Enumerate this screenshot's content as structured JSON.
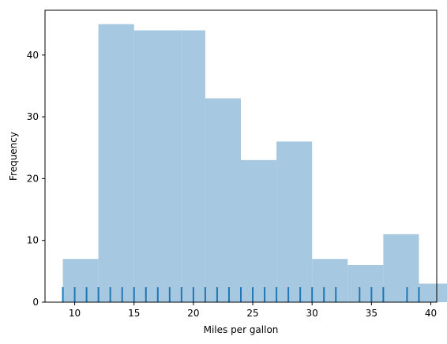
{
  "chart_data": {
    "type": "bar",
    "subtype": "histogram-with-rug",
    "title": "",
    "xlabel": "Miles per gallon",
    "ylabel": "Frequency",
    "xlim": [
      7.5,
      40.5
    ],
    "ylim": [
      0,
      47.25
    ],
    "xticks": [
      10,
      15,
      20,
      25,
      30,
      35,
      40
    ],
    "yticks": [
      0,
      10,
      20,
      30,
      40
    ],
    "bins": [
      {
        "x0": 9.0,
        "x1": 12.0,
        "count": 7
      },
      {
        "x0": 12.0,
        "x1": 15.0,
        "count": 45
      },
      {
        "x0": 15.0,
        "x1": 19.0,
        "count": 44
      },
      {
        "x0": 19.0,
        "x1": 21.0,
        "count": 44
      },
      {
        "x0": 21.0,
        "x1": 24.0,
        "count": 33
      },
      {
        "x0": 24.0,
        "x1": 27.0,
        "count": 23
      },
      {
        "x0": 27.0,
        "x1": 30.0,
        "count": 26
      },
      {
        "x0": 30.0,
        "x1": 33.0,
        "count": 7
      },
      {
        "x0": 33.0,
        "x1": 36.0,
        "count": 6
      },
      {
        "x0": 36.0,
        "x1": 39.0,
        "count": 11
      },
      {
        "x0": 39.0,
        "x1": 42.0,
        "count": 3
      }
    ],
    "rug": [
      9,
      10,
      11,
      12,
      13,
      14,
      15,
      16,
      17,
      18,
      19,
      20,
      21,
      22,
      23,
      24,
      25,
      26,
      27,
      28,
      29,
      30,
      31,
      32,
      34,
      35,
      36,
      38,
      39
    ],
    "colors": {
      "bar_fill": "#a6c8e0",
      "rug": "#1f77b4",
      "axis": "#000000"
    }
  }
}
